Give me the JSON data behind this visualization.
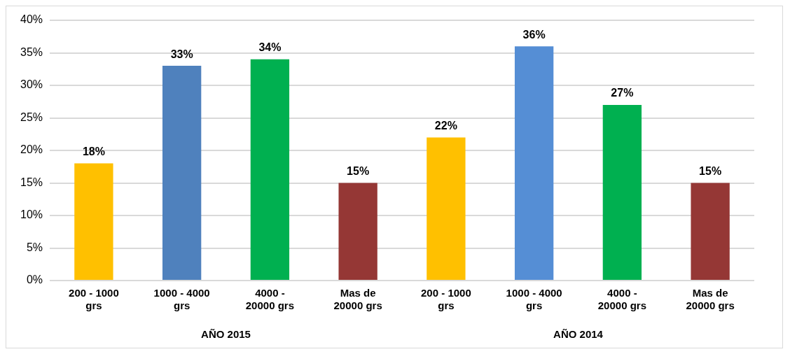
{
  "chart_data": {
    "type": "bar",
    "categories": [
      "200 - 1000 grs",
      "1000 - 4000 grs",
      "4000 - 20000 grs",
      "Mas de 20000 grs",
      "200 - 1000 grs",
      "1000 - 4000 grs",
      "4000 - 20000 grs",
      "Mas de 20000 grs"
    ],
    "values": [
      18,
      33,
      34,
      15,
      22,
      36,
      27,
      15
    ],
    "colors": [
      "#ffc000",
      "#4f81bd",
      "#00b050",
      "#953735",
      "#ffc000",
      "#558ed5",
      "#00b050",
      "#953735"
    ],
    "value_labels": [
      "18%",
      "33%",
      "34%",
      "15%",
      "22%",
      "36%",
      "27%",
      "15%"
    ],
    "ylim": [
      0,
      40
    ],
    "yticks": [
      {
        "value": 0,
        "label": "0%"
      },
      {
        "value": 5,
        "label": "5%"
      },
      {
        "value": 10,
        "label": "10%"
      },
      {
        "value": 15,
        "label": "15%"
      },
      {
        "value": 20,
        "label": "20%"
      },
      {
        "value": 25,
        "label": "25%"
      },
      {
        "value": 30,
        "label": "30%"
      },
      {
        "value": 35,
        "label": "35%"
      },
      {
        "value": 40,
        "label": "40%"
      }
    ],
    "grid": "y",
    "annotations": [
      "AÑO 2015",
      "AÑO 2014"
    ]
  }
}
